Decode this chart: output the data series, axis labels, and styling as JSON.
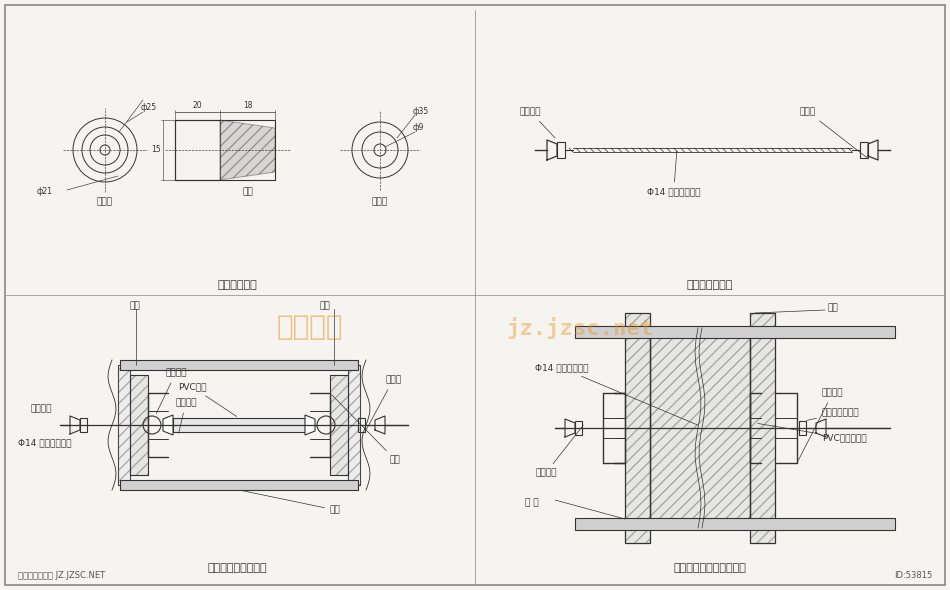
{
  "bg_color": "#f5f4f0",
  "border_color": "#666666",
  "line_color": "#333333",
  "title_texts": {
    "tl": "塑料堪头剪面",
    "tr": "对拉螺杆配件图",
    "bl": "对拉螺杆组装示意图",
    "br": "对拉螺杆安装成品示意图"
  },
  "watermark1": "典尚素材",
  "watermark2": "jz.jzsc.net",
  "footer_left": "典尚建筑素材网 JZ.JZSC.NET",
  "footer_right": "ID:53815",
  "subtitles": {
    "tl_left": "右视图",
    "tl_right": "左视图"
  },
  "labels_tr": {
    "left": "锁锄螺母",
    "top": "钔垆片",
    "bottom": "Φ14 通直对拉螺杆"
  },
  "labels_bl": {
    "moba": "模板",
    "moban2": "模板",
    "haojianquan": "海绵圆圈",
    "pvc": "PVC套管",
    "sujiaodutou": "塑料堪头",
    "gangdianpian": "钔垆片",
    "cajin": "锁锄螺母",
    "phi14": "Φ14 通直对拉螺杆",
    "caogangchannel": "槽锄",
    "lvjiang": "铝樊"
  },
  "labels_br": {
    "phi14": "Φ14 通直对拉螺杆",
    "moban": "模板",
    "caotong": "槽锄路器",
    "gangluomu": "钓锄螺母、垆片",
    "pvc_chitou": "PVC套管、堪头",
    "lvjiang": "铝 樊",
    "jietouhuan": "接头螺杆",
    "pvcguan": "PVC套管"
  }
}
